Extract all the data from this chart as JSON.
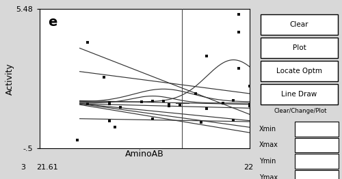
{
  "title_label": "e",
  "xlabel": "AminoAB",
  "ylabel": "Activity",
  "xlim": [
    21.61,
    22.0
  ],
  "ylim": [
    -0.5,
    5.48
  ],
  "ytick_labels": [
    "-.5",
    "5.48"
  ],
  "xtick_far_left": "3",
  "xtick_left_value": "21.61",
  "xtick_right_value": "22",
  "max_label": "3",
  "bg_color": "#d8d8d8",
  "plot_bg": "#ffffff",
  "scatter_color": "#111111",
  "line_color": "#333333",
  "buttons": [
    "Clear",
    "Plot",
    "Locate Optm",
    "Line Draw"
  ],
  "panel_labels": [
    "Clear/Change/Plot",
    "Xmin",
    "Xmax",
    "Ymin",
    "Ymax"
  ],
  "scatter_x": [
    21.7,
    21.73,
    21.9,
    21.98,
    21.68,
    21.82,
    21.98,
    21.92,
    21.98,
    21.74,
    21.84,
    21.97,
    21.7,
    21.91,
    22.0,
    21.74,
    21.85,
    22.0,
    21.76,
    21.85,
    21.92,
    21.82,
    21.97,
    21.74,
    21.87,
    22.0,
    21.75,
    21.95,
    21.8
  ],
  "scatter_y": [
    4.05,
    2.55,
    1.85,
    5.25,
    -0.15,
    1.52,
    4.5,
    3.45,
    2.95,
    1.48,
    1.52,
    1.57,
    1.43,
    0.62,
    1.38,
    1.43,
    1.38,
    1.33,
    1.28,
    1.33,
    1.22,
    0.77,
    0.72,
    0.68,
    1.35,
    2.18,
    0.42,
    1.45,
    1.5
  ]
}
